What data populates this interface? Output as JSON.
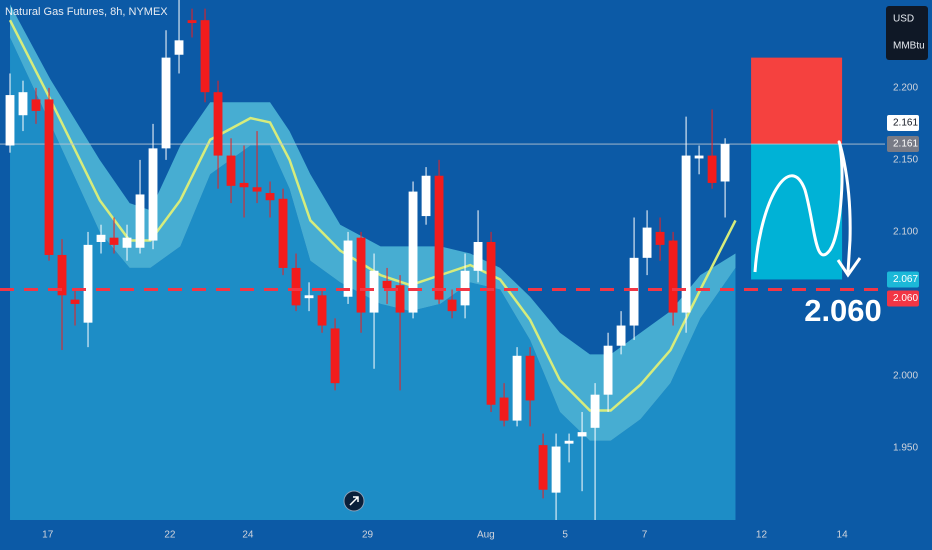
{
  "chart_data": {
    "type": "candlestick",
    "title": "Natural Gas Futures, 8h, NYMEX",
    "currency": "USD",
    "unit": "MMBtu",
    "up_color": "#ffffff",
    "down_color": "#f21c1c",
    "x": [
      0,
      1,
      2,
      3,
      4,
      5,
      6,
      7,
      8,
      9,
      10,
      11,
      12,
      13,
      14,
      15,
      16,
      17,
      18,
      19,
      20,
      21,
      22,
      23,
      24,
      25,
      26,
      27,
      28,
      29,
      30,
      31,
      32,
      33,
      34,
      35,
      36,
      37,
      38,
      39,
      40,
      41,
      42,
      43,
      44,
      45,
      46,
      47,
      48,
      49,
      50,
      51,
      52,
      53,
      54,
      55
    ],
    "open": [
      2.16,
      2.181,
      2.192,
      2.192,
      2.084,
      2.053,
      2.037,
      2.093,
      2.096,
      2.089,
      2.089,
      2.094,
      2.158,
      2.223,
      2.247,
      2.247,
      2.197,
      2.153,
      2.134,
      2.131,
      2.127,
      2.123,
      2.075,
      2.054,
      2.056,
      2.033,
      2.055,
      2.096,
      2.044,
      2.066,
      2.063,
      2.044,
      2.111,
      2.139,
      2.053,
      2.049,
      2.073,
      2.093,
      1.985,
      1.969,
      2.014,
      1.952,
      1.919,
      1.953,
      1.958,
      1.964,
      1.987,
      2.021,
      2.035,
      2.082,
      2.1,
      2.094,
      2.044,
      2.151,
      2.153,
      2.135
    ],
    "high": [
      2.21,
      2.205,
      2.2,
      2.2,
      2.095,
      2.06,
      2.1,
      2.105,
      2.11,
      2.105,
      2.15,
      2.175,
      2.24,
      2.261,
      2.255,
      2.255,
      2.205,
      2.165,
      2.16,
      2.17,
      2.135,
      2.13,
      2.085,
      2.065,
      2.06,
      2.04,
      2.1,
      2.1,
      2.085,
      2.075,
      2.07,
      2.135,
      2.145,
      2.15,
      2.06,
      2.085,
      2.115,
      2.1,
      1.995,
      2.02,
      2.02,
      1.96,
      1.96,
      1.96,
      1.975,
      1.995,
      2.03,
      2.045,
      2.11,
      2.115,
      2.11,
      2.1,
      2.18,
      2.16,
      2.185,
      2.165
    ],
    "low": [
      2.155,
      2.17,
      2.175,
      2.08,
      2.018,
      2.035,
      2.02,
      2.085,
      2.085,
      2.08,
      2.085,
      2.088,
      2.15,
      2.21,
      2.235,
      2.19,
      2.13,
      2.12,
      2.11,
      2.12,
      2.11,
      2.07,
      2.045,
      2.045,
      2.03,
      1.99,
      2.05,
      2.03,
      2.005,
      2.05,
      1.99,
      2.04,
      2.105,
      2.05,
      2.04,
      2.04,
      2.065,
      1.975,
      1.965,
      1.965,
      1.965,
      1.915,
      1.9,
      1.94,
      1.92,
      1.9,
      1.975,
      2.015,
      2.025,
      2.07,
      2.08,
      2.035,
      2.03,
      2.14,
      2.13,
      2.11
    ],
    "close": [
      2.195,
      2.197,
      2.184,
      2.084,
      2.056,
      2.05,
      2.091,
      2.098,
      2.091,
      2.096,
      2.126,
      2.158,
      2.221,
      2.233,
      2.245,
      2.197,
      2.153,
      2.132,
      2.131,
      2.128,
      2.122,
      2.075,
      2.049,
      2.056,
      2.035,
      1.995,
      2.094,
      2.044,
      2.073,
      2.061,
      2.044,
      2.128,
      2.139,
      2.053,
      2.045,
      2.073,
      2.093,
      1.98,
      1.969,
      2.014,
      1.983,
      1.921,
      1.951,
      1.955,
      1.961,
      1.987,
      2.021,
      2.035,
      2.082,
      2.103,
      2.091,
      2.044,
      2.153,
      2.153,
      2.134,
      2.161
    ],
    "overlays": {
      "ma": {
        "color": "#d6ec7c",
        "x": [
          0,
          3.1,
          6.9,
          9.2,
          10.8,
          13.1,
          15.4,
          18.5,
          20,
          21.5,
          23.1,
          25.4,
          28.5,
          30.8,
          33.1,
          35.4,
          37.7,
          40,
          42.3,
          44.6,
          46.2,
          48.5,
          50.8,
          53.1,
          55.8
        ],
        "values": [
          2.247,
          2.192,
          2.122,
          2.094,
          2.094,
          2.122,
          2.164,
          2.179,
          2.176,
          2.15,
          2.108,
          2.087,
          2.07,
          2.063,
          2.07,
          2.077,
          2.067,
          2.039,
          1.997,
          1.976,
          1.976,
          1.994,
          2.018,
          2.06,
          2.108
        ]
      },
      "band": {
        "color": "#52bcd9",
        "fill_below": "#1d8dc6",
        "x": [
          0,
          3.1,
          6.9,
          9.2,
          10.8,
          13.1,
          15.4,
          18.5,
          20,
          21.5,
          23.1,
          25.4,
          28.5,
          30.8,
          33.1,
          35.4,
          37.7,
          40,
          42.3,
          44.6,
          46.2,
          48.5,
          50.8,
          53.1,
          55.8
        ],
        "upper": [
          2.258,
          2.206,
          2.15,
          2.12,
          2.115,
          2.16,
          2.19,
          2.19,
          2.19,
          2.17,
          2.14,
          2.105,
          2.09,
          2.09,
          2.09,
          2.085,
          2.075,
          2.055,
          2.03,
          2.015,
          2.015,
          2.03,
          2.045,
          2.07,
          2.085
        ],
        "lower": [
          2.235,
          2.175,
          2.1,
          2.075,
          2.075,
          2.09,
          2.14,
          2.16,
          2.16,
          2.13,
          2.08,
          2.065,
          2.05,
          2.045,
          2.05,
          2.065,
          2.06,
          2.025,
          1.975,
          1.955,
          1.955,
          1.97,
          1.995,
          2.04,
          2.075
        ]
      }
    },
    "position": {
      "x": [
        57,
        64
      ],
      "stop": 2.221,
      "entry": 2.161,
      "target": 2.067,
      "stop_color": "#f5413f",
      "target_color": "#00b2d6"
    },
    "level": {
      "value": 2.06,
      "label": "2.060",
      "color": "#f23645"
    },
    "price_labels": [
      {
        "value": 2.161,
        "color": "#ffffff"
      },
      {
        "value": 2.161,
        "color": "#787b86"
      },
      {
        "value": 2.067,
        "color": "#1cb8d8"
      },
      {
        "value": 2.06,
        "label": "2.060",
        "color": "#f23645"
      }
    ],
    "xlim": [
      -0.77,
      67.3
    ],
    "ylim": [
      1.9,
      2.261
    ],
    "xticks": [
      {
        "value": 2.9,
        "label": "17"
      },
      {
        "value": 12.3,
        "label": "22"
      },
      {
        "value": 18.3,
        "label": "24"
      },
      {
        "value": 27.5,
        "label": "29"
      },
      {
        "value": 36.6,
        "label": "Aug"
      },
      {
        "value": 42.7,
        "label": "5"
      },
      {
        "value": 48.8,
        "label": "7"
      },
      {
        "value": 57.8,
        "label": "12"
      },
      {
        "value": 64,
        "label": "14"
      }
    ],
    "yticks": [
      {
        "value": 1.95,
        "label": "1.950"
      },
      {
        "value": 2.0,
        "label": "2.000"
      },
      {
        "value": 2.1,
        "label": "2.100"
      },
      {
        "value": 2.15,
        "label": "2.150"
      },
      {
        "value": 2.2,
        "label": "2.200"
      }
    ]
  }
}
